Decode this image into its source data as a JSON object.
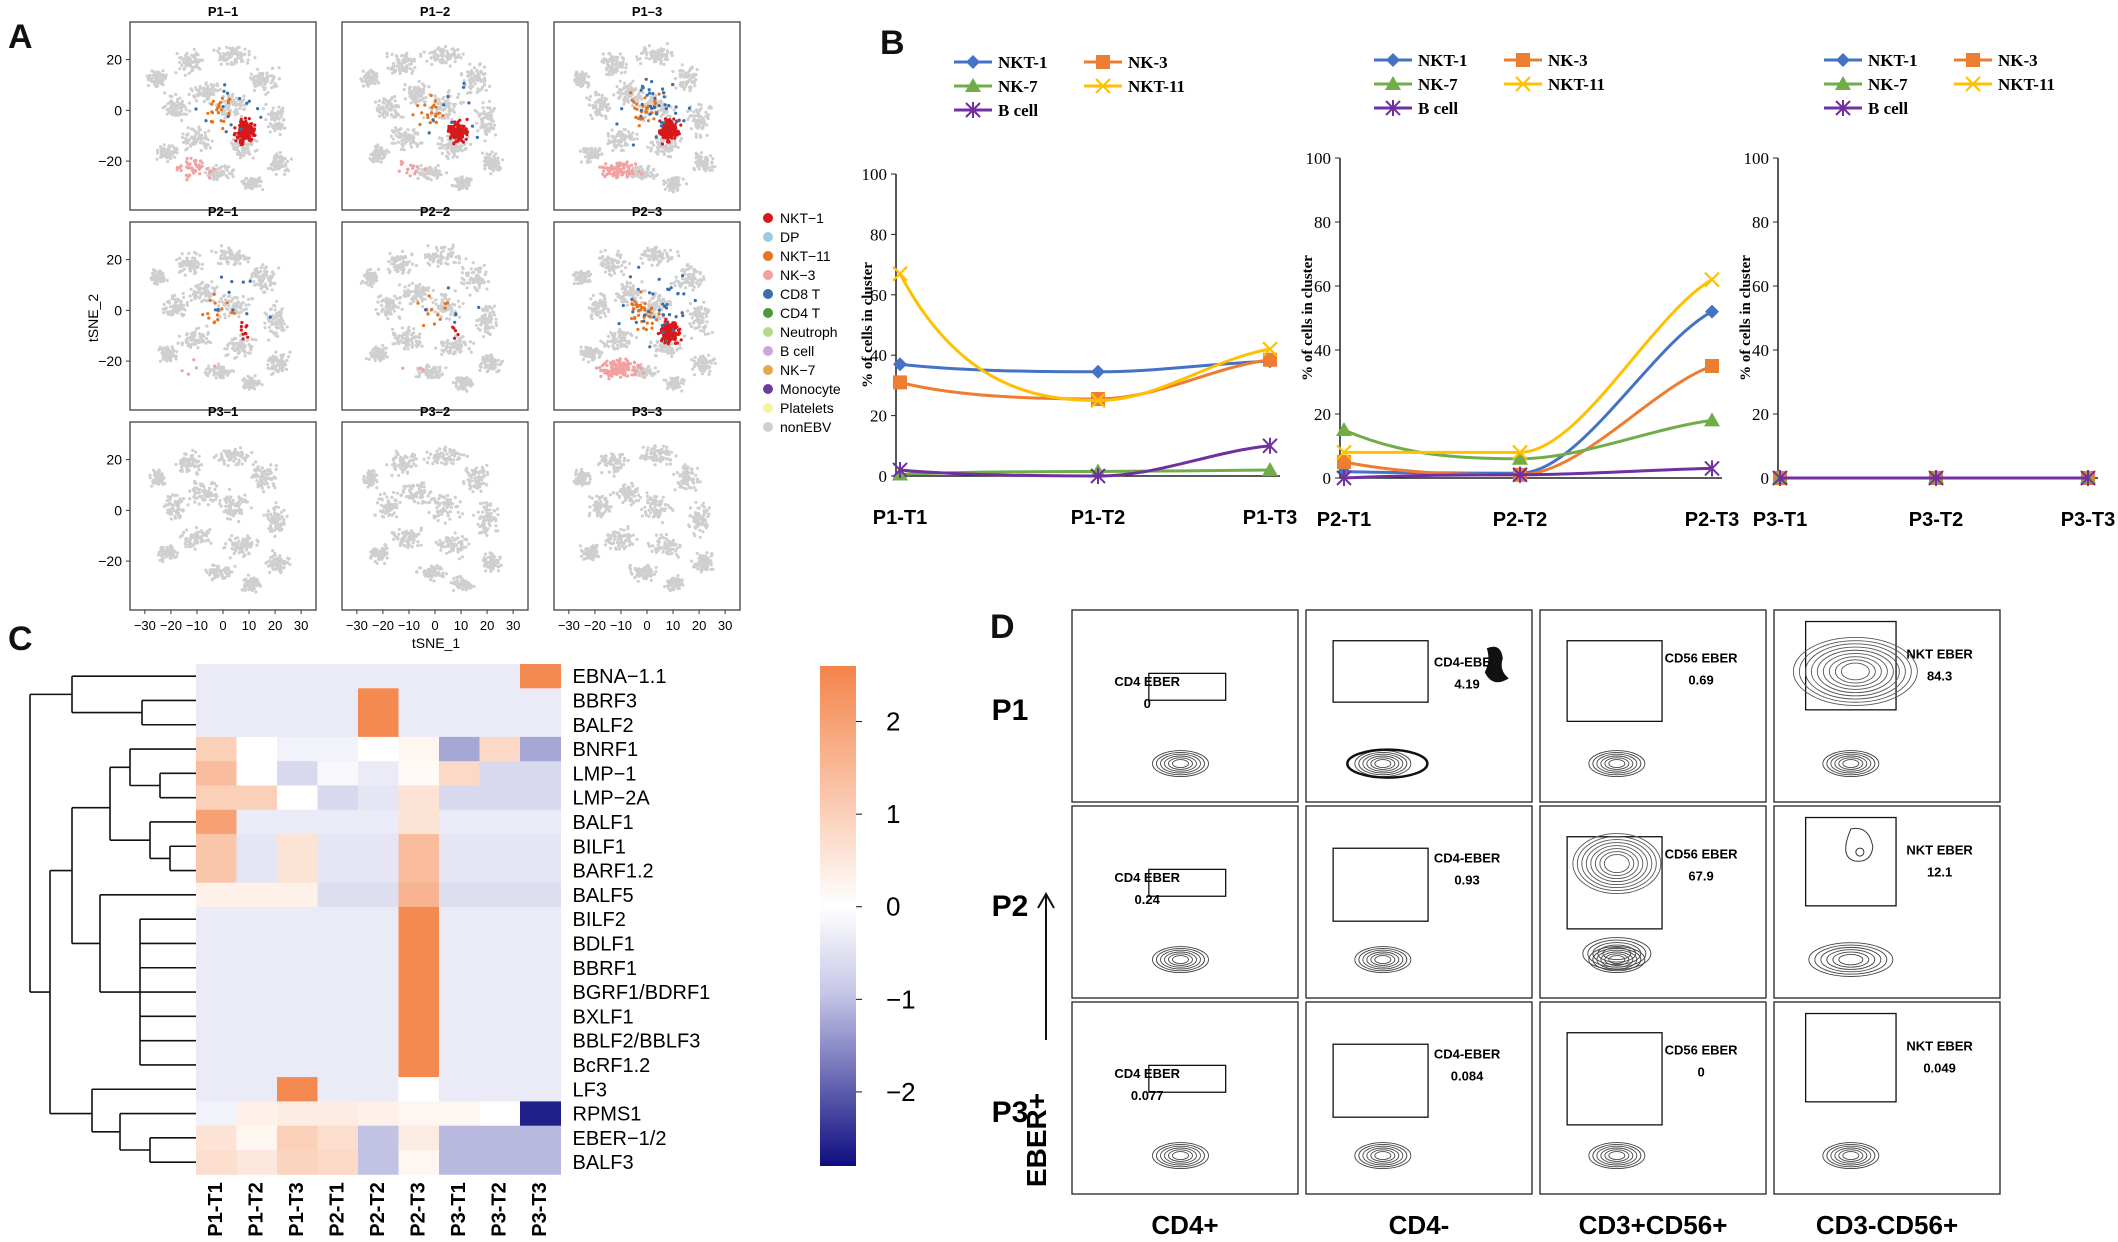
{
  "panels": {
    "A": "A",
    "B": "B",
    "C": "C",
    "D": "D"
  },
  "colors": {
    "nkt1": "#d7191c",
    "dp": "#9ecae1",
    "nkt11": "#e6731f",
    "nk3": "#f2a0a0",
    "cd8t": "#3a6ea8",
    "cd4t": "#4a9a3a",
    "neutroph": "#b8d98a",
    "bcell": "#c9a8d8",
    "nk7": "#e8a64a",
    "monocyte": "#6a3d9a",
    "platelets": "#f7f4a0",
    "nonebv": "#cfcfcf",
    "line_nkt1": "#4472c4",
    "line_nk3": "#ed7d31",
    "line_nk7": "#70ad47",
    "line_nkt11": "#ffc000",
    "line_bcell": "#7030a0",
    "heat_high": "#f4844a",
    "heat_mid": "#ffffff",
    "heat_low": "#0d0d80"
  },
  "panelA": {
    "titles": [
      "P1–1",
      "P1–2",
      "P1–3",
      "P2–1",
      "P2–2",
      "P2–3",
      "P3–1",
      "P3–2",
      "P3–3"
    ],
    "ylabel": "tSNE_2",
    "xlabel": "tSNE_1",
    "yticks": [
      "20",
      "0",
      "−20"
    ],
    "xticks": [
      "−30",
      "−20",
      "−10",
      "0",
      "10",
      "20",
      "30"
    ],
    "legend": [
      {
        "label": "NKT−1",
        "color_key": "nkt1"
      },
      {
        "label": "DP",
        "color_key": "dp"
      },
      {
        "label": "NKT−11",
        "color_key": "nkt11"
      },
      {
        "label": "NK−3",
        "color_key": "nk3"
      },
      {
        "label": "CD8 T",
        "color_key": "cd8t"
      },
      {
        "label": "CD4 T",
        "color_key": "cd4t"
      },
      {
        "label": "Neutroph",
        "color_key": "neutroph"
      },
      {
        "label": "B cell",
        "color_key": "bcell"
      },
      {
        "label": "NK−7",
        "color_key": "nk7"
      },
      {
        "label": "Monocyte",
        "color_key": "monocyte"
      },
      {
        "label": "Platelets",
        "color_key": "platelets"
      },
      {
        "label": "nonEBV",
        "color_key": "nonebv"
      }
    ]
  },
  "chart_data": [
    {
      "type": "line",
      "panel": "B",
      "ylabel": "% of cells in cluster",
      "ylim": [
        0,
        100
      ],
      "yticks": [
        "0",
        "20",
        "40",
        "60",
        "80",
        "100"
      ],
      "categories": [
        "P1-T1",
        "P1-T2",
        "P1-T3"
      ],
      "series": [
        {
          "name": "NKT-1",
          "values": [
            37,
            34.5,
            38
          ]
        },
        {
          "name": "NK-3",
          "values": [
            31,
            25.5,
            38.5
          ]
        },
        {
          "name": "NK-7",
          "values": [
            0.5,
            1.5,
            2
          ]
        },
        {
          "name": "NKT-11",
          "values": [
            67,
            25,
            42
          ]
        },
        {
          "name": "B cell",
          "values": [
            2,
            0,
            10
          ]
        }
      ]
    },
    {
      "type": "line",
      "panel": "B",
      "ylabel": "% of cells in cluster",
      "ylim": [
        0,
        100
      ],
      "yticks": [
        "0",
        "20",
        "40",
        "60",
        "80",
        "100"
      ],
      "categories": [
        "P2-T1",
        "P2-T2",
        "P2-T3"
      ],
      "series": [
        {
          "name": "NKT-1",
          "values": [
            2,
            1.5,
            52
          ]
        },
        {
          "name": "NK-3",
          "values": [
            5,
            1,
            35
          ]
        },
        {
          "name": "NK-7",
          "values": [
            15,
            6,
            18
          ]
        },
        {
          "name": "NKT-11",
          "values": [
            8,
            8,
            62
          ]
        },
        {
          "name": "B cell",
          "values": [
            0,
            1,
            3
          ]
        }
      ]
    },
    {
      "type": "line",
      "panel": "B",
      "ylabel": "% of cells in cluster",
      "ylim": [
        0,
        100
      ],
      "yticks": [
        "0",
        "20",
        "40",
        "60",
        "80",
        "100"
      ],
      "categories": [
        "P3-T1",
        "P3-T2",
        "P3-T3"
      ],
      "series": [
        {
          "name": "NKT-1",
          "values": [
            0,
            0,
            0
          ]
        },
        {
          "name": "NK-3",
          "values": [
            0,
            0,
            0
          ]
        },
        {
          "name": "NK-7",
          "values": [
            0,
            0,
            0
          ]
        },
        {
          "name": "NKT-11",
          "values": [
            0,
            0,
            0
          ]
        },
        {
          "name": "B cell",
          "values": [
            0,
            0,
            0
          ]
        }
      ]
    },
    {
      "type": "heatmap",
      "panel": "C",
      "columns": [
        "P1-T1",
        "P1-T2",
        "P1-T3",
        "P2-T1",
        "P2-T2",
        "P2-T3",
        "P3-T1",
        "P3-T2",
        "P3-T3"
      ],
      "rows": [
        "EBNA−1.1",
        "BBRF3",
        "BALF2",
        "BNRF1",
        "LMP−1",
        "LMP−2A",
        "BALF1",
        "BILF1",
        "BARF1.2",
        "BALF5",
        "BILF2",
        "BDLF1",
        "BBRF1",
        "BGRF1/BDRF1",
        "BXLF1",
        "BBLF2/BBLF3",
        "BcRF1.2",
        "LF3",
        "RPMS1",
        "EBER−1/2",
        "BALF3"
      ],
      "values": [
        [
          -0.3,
          -0.3,
          -0.3,
          -0.3,
          -0.3,
          -0.3,
          -0.3,
          -0.3,
          2.5
        ],
        [
          -0.3,
          -0.3,
          -0.3,
          -0.3,
          2.5,
          -0.3,
          -0.3,
          -0.3,
          -0.3
        ],
        [
          -0.3,
          -0.3,
          -0.3,
          -0.3,
          2.5,
          -0.3,
          -0.3,
          -0.3,
          -0.3
        ],
        [
          1.0,
          0.0,
          -0.2,
          -0.2,
          0.0,
          0.2,
          -1.2,
          0.8,
          -1.2
        ],
        [
          1.4,
          0.0,
          -0.6,
          -0.1,
          -0.3,
          0.1,
          0.8,
          -0.6,
          -0.6
        ],
        [
          1.0,
          1.0,
          0.0,
          -0.6,
          -0.4,
          0.6,
          -0.6,
          -0.6,
          -0.6
        ],
        [
          2.0,
          -0.3,
          -0.3,
          -0.3,
          -0.3,
          0.6,
          -0.3,
          -0.3,
          -0.3
        ],
        [
          1.2,
          -0.4,
          0.6,
          -0.4,
          -0.4,
          1.4,
          -0.4,
          -0.4,
          -0.4
        ],
        [
          1.2,
          -0.4,
          0.6,
          -0.4,
          -0.4,
          1.4,
          -0.4,
          -0.4,
          -0.4
        ],
        [
          0.3,
          0.3,
          0.3,
          -0.5,
          -0.5,
          1.6,
          -0.5,
          -0.5,
          -0.5
        ],
        [
          -0.3,
          -0.3,
          -0.3,
          -0.3,
          -0.3,
          2.5,
          -0.3,
          -0.3,
          -0.3
        ],
        [
          -0.3,
          -0.3,
          -0.3,
          -0.3,
          -0.3,
          2.5,
          -0.3,
          -0.3,
          -0.3
        ],
        [
          -0.3,
          -0.3,
          -0.3,
          -0.3,
          -0.3,
          2.5,
          -0.3,
          -0.3,
          -0.3
        ],
        [
          -0.3,
          -0.3,
          -0.3,
          -0.3,
          -0.3,
          2.5,
          -0.3,
          -0.3,
          -0.3
        ],
        [
          -0.3,
          -0.3,
          -0.3,
          -0.3,
          -0.3,
          2.5,
          -0.3,
          -0.3,
          -0.3
        ],
        [
          -0.3,
          -0.3,
          -0.3,
          -0.3,
          -0.3,
          2.5,
          -0.3,
          -0.3,
          -0.3
        ],
        [
          -0.3,
          -0.3,
          -0.3,
          -0.3,
          -0.3,
          2.5,
          -0.3,
          -0.3,
          -0.3
        ],
        [
          -0.3,
          -0.3,
          2.5,
          -0.3,
          -0.3,
          0.0,
          -0.3,
          -0.3,
          -0.3
        ],
        [
          -0.2,
          0.3,
          0.4,
          0.4,
          0.3,
          0.2,
          0.2,
          0.0,
          -2.6
        ],
        [
          0.6,
          0.2,
          1.0,
          0.7,
          -0.9,
          0.4,
          -1.0,
          -1.0,
          -1.0
        ],
        [
          0.7,
          0.5,
          0.9,
          0.8,
          -0.9,
          0.2,
          -1.0,
          -1.0,
          -1.0
        ]
      ],
      "colorbar_ticks": [
        "2",
        "1",
        "0",
        "−1",
        "−2"
      ],
      "zlim": [
        -2.8,
        2.6
      ]
    }
  ],
  "panelD": {
    "rows": [
      "P1",
      "P2",
      "P3"
    ],
    "columns": [
      "CD4+",
      "CD4-",
      "CD3+CD56+",
      "CD3-CD56+"
    ],
    "axis_label": "EBER+",
    "gates": [
      [
        {
          "name": "CD4 EBER",
          "value": "0"
        },
        {
          "name": "CD4-EBER",
          "value": "4.19"
        },
        {
          "name": "CD56 EBER",
          "value": "0.69"
        },
        {
          "name": "NKT EBER",
          "value": "84.3"
        }
      ],
      [
        {
          "name": "CD4 EBER",
          "value": "0.24"
        },
        {
          "name": "CD4-EBER",
          "value": "0.93"
        },
        {
          "name": "CD56 EBER",
          "value": "67.9"
        },
        {
          "name": "NKT EBER",
          "value": "12.1"
        }
      ],
      [
        {
          "name": "CD4 EBER",
          "value": "0.077"
        },
        {
          "name": "CD4-EBER",
          "value": "0.084"
        },
        {
          "name": "CD56 EBER",
          "value": "0"
        },
        {
          "name": "NKT EBER",
          "value": "0.049"
        }
      ]
    ]
  }
}
